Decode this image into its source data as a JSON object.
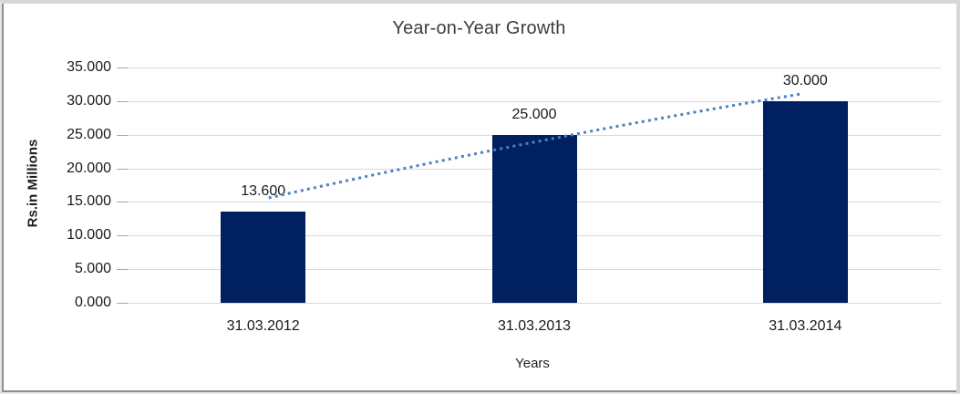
{
  "window": {
    "background": "#ffffff",
    "frame_outer_color": "#d7d7d7",
    "frame_edge_color": "#8f8f8f"
  },
  "chart_data": {
    "type": "bar",
    "title": "Year-on-Year Growth",
    "xlabel": "Years",
    "ylabel": "Rs.in Millions",
    "categories": [
      "31.03.2012",
      "31.03.2013",
      "31.03.2014"
    ],
    "values": [
      13.6,
      25.0,
      30.0
    ],
    "data_labels": [
      "13.600",
      "25.000",
      "30.000"
    ],
    "ylim": [
      0,
      35
    ],
    "ytick_step": 5,
    "ytick_labels": [
      "35.000",
      "30.000",
      "25.000",
      "20.000",
      "15.000",
      "10.000",
      "5.000",
      "0.000"
    ],
    "grid": true,
    "legend": "none",
    "bar_color": "#002060",
    "gridline_color": "#d9d9d9",
    "tick_color": "#a6a6a6",
    "text_color": "#1a1a1a",
    "title_color": "#3d3d3d",
    "trendline": {
      "style": "dotted",
      "color": "#4f81bd",
      "fitted_values": [
        15.6,
        23.9,
        31.1
      ]
    }
  }
}
